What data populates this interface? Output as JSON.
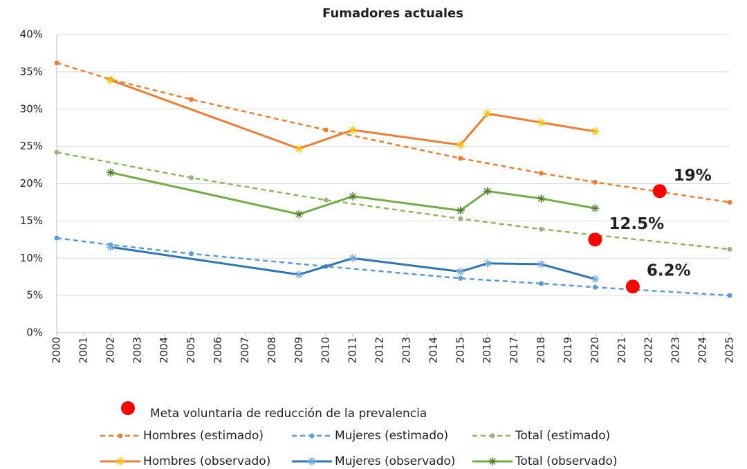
{
  "chart_data": {
    "type": "line",
    "title": "Fumadores actuales",
    "xlim": [
      2000,
      2025
    ],
    "xticks": [
      2000,
      2001,
      2002,
      2003,
      2004,
      2005,
      2006,
      2007,
      2008,
      2009,
      2010,
      2011,
      2012,
      2013,
      2014,
      2015,
      2016,
      2017,
      2018,
      2019,
      2020,
      2021,
      2022,
      2023,
      2024,
      2025
    ],
    "ylim": [
      0,
      40
    ],
    "yticks": [
      {
        "value": 0,
        "label": "0%"
      },
      {
        "value": 5,
        "label": "5%"
      },
      {
        "value": 10,
        "label": "10%"
      },
      {
        "value": 15,
        "label": "15%"
      },
      {
        "value": 20,
        "label": "20%"
      },
      {
        "value": 25,
        "label": "25%"
      },
      {
        "value": 30,
        "label": "30%"
      },
      {
        "value": 35,
        "label": "35%"
      },
      {
        "value": 40,
        "label": "40%"
      }
    ],
    "grid": true,
    "series": [
      {
        "name": "Hombres (estimado)",
        "color": "#ED7D31",
        "marker_color": "#ED7D31",
        "dashed": true,
        "marker": "circle",
        "x": [
          2000,
          2002,
          2005,
          2010,
          2015,
          2018,
          2020,
          2025
        ],
        "values": [
          36.2,
          34.0,
          31.3,
          27.2,
          23.4,
          21.4,
          20.2,
          17.5
        ]
      },
      {
        "name": "Mujeres (estimado)",
        "color": "#5B9BD5",
        "marker_color": "#5B9BD5",
        "dashed": true,
        "marker": "circle",
        "x": [
          2000,
          2002,
          2005,
          2010,
          2015,
          2018,
          2020,
          2025
        ],
        "values": [
          12.7,
          11.8,
          10.6,
          8.9,
          7.3,
          6.6,
          6.1,
          5.0
        ]
      },
      {
        "name": "Total (estimado)",
        "color": "#8DB85A",
        "marker_color": "#9DAF88",
        "dashed": true,
        "marker": "circle",
        "x": [
          2000,
          2005,
          2010,
          2015,
          2018,
          2020,
          2025
        ],
        "values": [
          24.2,
          20.8,
          17.8,
          15.3,
          13.9,
          13.1,
          11.2
        ]
      },
      {
        "name": "Hombres (observado)",
        "color": "#ED7D31",
        "marker_color": "#FFC000",
        "dashed": false,
        "marker": "star",
        "x": [
          2002,
          2009,
          2011,
          2015,
          2016,
          2018,
          2020
        ],
        "values": [
          33.9,
          24.7,
          27.2,
          25.2,
          29.4,
          28.2,
          27.0
        ]
      },
      {
        "name": "Mujeres (observado)",
        "color": "#2E75B6",
        "marker_color": "#6FA8DC",
        "dashed": false,
        "marker": "star",
        "x": [
          2002,
          2009,
          2011,
          2015,
          2016,
          2018,
          2020
        ],
        "values": [
          11.5,
          7.8,
          10.0,
          8.2,
          9.3,
          9.2,
          7.2
        ]
      },
      {
        "name": "Total (observado)",
        "color": "#70AD47",
        "marker_color": "#4E7F2E",
        "dashed": false,
        "marker": "star",
        "x": [
          2002,
          2009,
          2011,
          2015,
          2016,
          2018,
          2020
        ],
        "values": [
          21.5,
          15.9,
          18.3,
          16.4,
          19.0,
          18.0,
          16.7
        ]
      }
    ],
    "targets": {
      "name": "Meta voluntaria de reducción de la prevalencia",
      "color": "#FF0000",
      "x": [
        2022.4,
        2020,
        2021.4
      ],
      "values": [
        19,
        12.5,
        6.2
      ],
      "value_labels": [
        "19%",
        "12.5%",
        "6.2%"
      ]
    }
  }
}
